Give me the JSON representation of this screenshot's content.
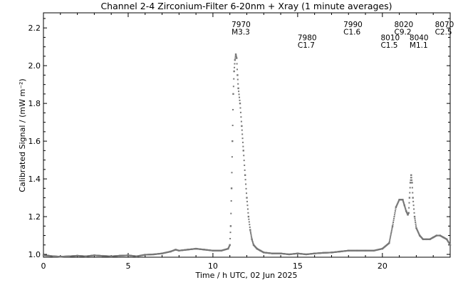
{
  "chart_data": {
    "type": "scatter",
    "title": "Channel 2-4   Zirconium-Filter   6-20nm + Xray   (1 minute averages)",
    "xlabel": "Time / h UTC, 02 Jun 2025",
    "ylabel": "Calibrated Signal / (mW m⁻²)",
    "xlim": [
      0,
      24
    ],
    "ylim": [
      0.985,
      2.28
    ],
    "xticks": [
      0,
      5,
      10,
      15,
      20
    ],
    "xtick_labels": [
      "0",
      "5",
      "10",
      "15",
      "20"
    ],
    "yticks": [
      1.0,
      1.2,
      1.4,
      1.6,
      1.8,
      2.0,
      2.2
    ],
    "ytick_labels": [
      "1.0",
      "1.2",
      "1.4",
      "1.6",
      "1.8",
      "2.0",
      "2.2"
    ],
    "marker_color": "#777777",
    "grid": false,
    "legend": "none",
    "annotations": [
      {
        "x": 11.1,
        "y": 2.22,
        "text": "7970"
      },
      {
        "x": 11.1,
        "y": 2.18,
        "text": "M3.3"
      },
      {
        "x": 15.0,
        "y": 2.15,
        "text": "7980"
      },
      {
        "x": 15.0,
        "y": 2.11,
        "text": "C1.7"
      },
      {
        "x": 17.7,
        "y": 2.22,
        "text": "7990"
      },
      {
        "x": 17.7,
        "y": 2.18,
        "text": "C1.6"
      },
      {
        "x": 19.9,
        "y": 2.15,
        "text": "8010"
      },
      {
        "x": 19.9,
        "y": 2.11,
        "text": "C1.5"
      },
      {
        "x": 20.7,
        "y": 2.22,
        "text": "8020"
      },
      {
        "x": 20.7,
        "y": 2.18,
        "text": "C9.2"
      },
      {
        "x": 21.6,
        "y": 2.15,
        "text": "8040"
      },
      {
        "x": 21.6,
        "y": 2.11,
        "text": "M1.1"
      },
      {
        "x": 23.1,
        "y": 2.22,
        "text": "8070"
      },
      {
        "x": 23.1,
        "y": 2.18,
        "text": "C2.5"
      }
    ],
    "series": [
      {
        "x": [
          0,
          0.3,
          0.6,
          1.0,
          1.5,
          2.0,
          2.5,
          3.0,
          3.5,
          4.0,
          4.5,
          5.0,
          5.5,
          6.0,
          6.5,
          7.0,
          7.5,
          7.8,
          8.0,
          8.5,
          9.0,
          9.5,
          10.0,
          10.5,
          10.9,
          11.0,
          11.05,
          11.1,
          11.15,
          11.2,
          11.25,
          11.3,
          11.35,
          11.4,
          11.45,
          11.5,
          11.6,
          11.7,
          11.8,
          11.9,
          12.0,
          12.1,
          12.2,
          12.3,
          12.4,
          12.6,
          12.8,
          13.0,
          13.5,
          14.0,
          14.5,
          15.0,
          15.5,
          16.0,
          16.5,
          17.0,
          17.5,
          18.0,
          18.5,
          19.0,
          19.5,
          20.0,
          20.4,
          20.6,
          20.8,
          21.0,
          21.2,
          21.3,
          21.4,
          21.5,
          21.55,
          21.6,
          21.65,
          21.7,
          21.75,
          21.8,
          21.9,
          22.0,
          22.2,
          22.4,
          22.6,
          22.8,
          23.0,
          23.2,
          23.4,
          23.6,
          23.8,
          24.0
        ],
        "y": [
          0.995,
          0.993,
          0.99,
          0.988,
          0.99,
          0.993,
          0.99,
          0.995,
          0.992,
          0.99,
          0.993,
          0.995,
          0.99,
          0.998,
          1.0,
          1.005,
          1.015,
          1.025,
          1.02,
          1.025,
          1.03,
          1.025,
          1.02,
          1.02,
          1.03,
          1.05,
          1.15,
          1.35,
          1.6,
          1.85,
          1.97,
          2.03,
          2.06,
          2.04,
          1.95,
          1.88,
          1.8,
          1.68,
          1.55,
          1.42,
          1.3,
          1.2,
          1.13,
          1.08,
          1.05,
          1.03,
          1.02,
          1.01,
          1.005,
          1.005,
          1.0,
          1.005,
          1.0,
          1.005,
          1.008,
          1.01,
          1.015,
          1.02,
          1.02,
          1.02,
          1.02,
          1.03,
          1.06,
          1.15,
          1.25,
          1.29,
          1.29,
          1.26,
          1.23,
          1.21,
          1.22,
          1.3,
          1.38,
          1.42,
          1.38,
          1.3,
          1.2,
          1.14,
          1.1,
          1.08,
          1.08,
          1.08,
          1.09,
          1.1,
          1.1,
          1.09,
          1.08,
          1.05
        ]
      }
    ]
  }
}
